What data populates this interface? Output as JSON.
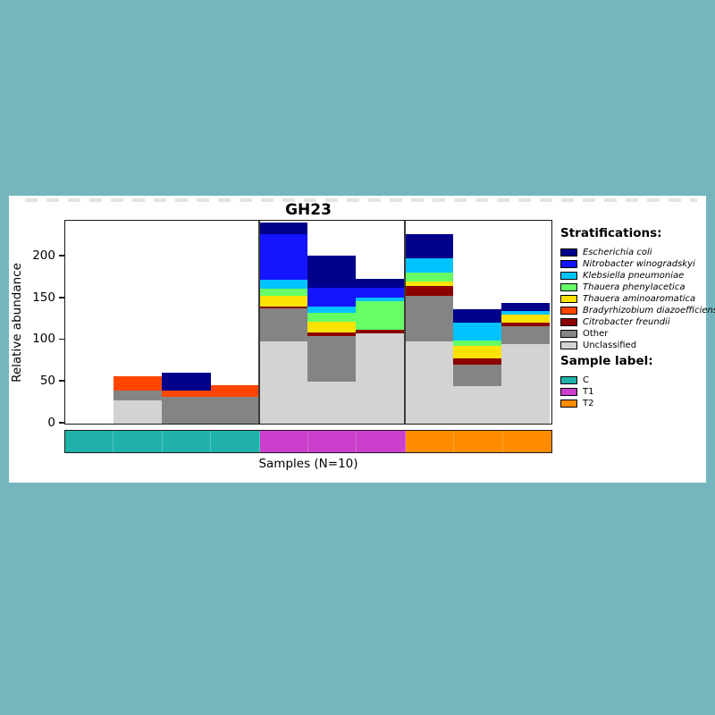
{
  "page": {
    "background_color": "#75b6be",
    "panel_color": "#ffffff"
  },
  "chart_data": {
    "type": "bar",
    "stacked": true,
    "title": "GH23",
    "xlabel": "Samples (N=10)",
    "ylabel": "Relative abundance",
    "ylim": [
      0,
      240.5
    ],
    "yticks": [
      0,
      50,
      100,
      150,
      200
    ],
    "n_slots": 10,
    "grid": false,
    "legend_position": "right of plot",
    "series_stack_order": "bottom to top as listed",
    "series": [
      {
        "name": "Unclassified",
        "color": "#d3d3d3",
        "italic": false,
        "values": [
          0,
          28,
          0,
          0,
          98,
          50,
          108,
          98,
          45,
          95
        ]
      },
      {
        "name": "Other",
        "color": "#848484",
        "italic": false,
        "values": [
          0,
          11,
          32,
          32,
          40,
          55,
          0,
          55,
          25,
          21
        ]
      },
      {
        "name": "Citrobacter freundii",
        "color": "#8b0000",
        "italic": true,
        "values": [
          0,
          0,
          0,
          0,
          2,
          4,
          4,
          11,
          8,
          5
        ]
      },
      {
        "name": "Bradyrhizobium diazoefficiens",
        "color": "#ff4500",
        "italic": true,
        "values": [
          0,
          18,
          8,
          14,
          0,
          0,
          0,
          0,
          0,
          0
        ]
      },
      {
        "name": "Thauera aminoaromatica",
        "color": "#fce303",
        "italic": true,
        "values": [
          0,
          0,
          0,
          0,
          13,
          13,
          0,
          6,
          15,
          9
        ]
      },
      {
        "name": "Thauera phenylacetica",
        "color": "#66ff66",
        "italic": true,
        "values": [
          0,
          0,
          0,
          0,
          8,
          10,
          34,
          10,
          6,
          0
        ]
      },
      {
        "name": "Klebsiella pneumoniae",
        "color": "#00c3ff",
        "italic": true,
        "values": [
          0,
          0,
          0,
          0,
          11,
          8,
          4,
          17,
          22,
          4
        ]
      },
      {
        "name": "Nitrobacter winogradskyi",
        "color": "#1414ff",
        "italic": true,
        "values": [
          0,
          0,
          0,
          0,
          54,
          22,
          12,
          0,
          0,
          0
        ]
      },
      {
        "name": "Escherichia coli",
        "color": "#00008b",
        "italic": true,
        "values": [
          0,
          0,
          21,
          0,
          14,
          39,
          11,
          29,
          16,
          10
        ]
      }
    ],
    "groups": [
      {
        "name": "C",
        "color": "#20b2aa",
        "slots": [
          0,
          1,
          2,
          3
        ]
      },
      {
        "name": "T1",
        "color": "#cc3ecc",
        "slots": [
          4,
          5,
          6
        ]
      },
      {
        "name": "T2",
        "color": "#ff8c00",
        "slots": [
          7,
          8,
          9
        ]
      }
    ],
    "group_separators_after_slots": [
      3,
      6
    ]
  },
  "legend": {
    "stratifications_title": "Stratifications:",
    "samples_title": "Sample label:"
  }
}
